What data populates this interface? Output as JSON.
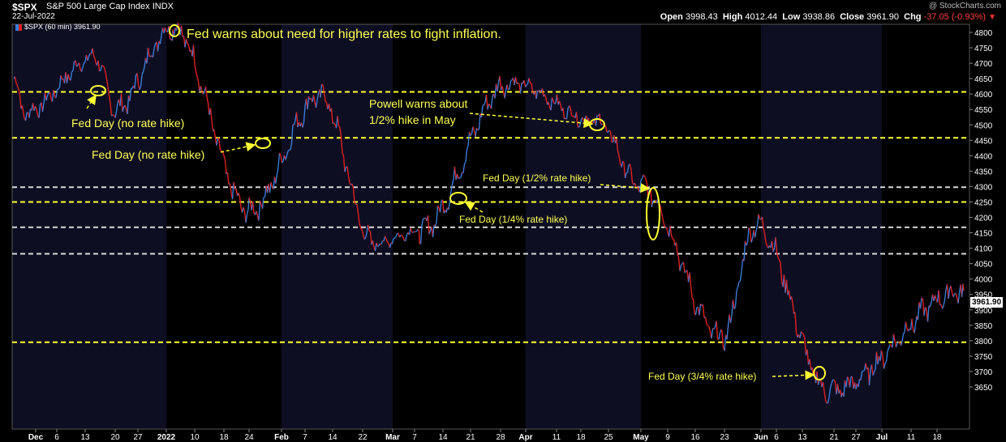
{
  "header": {
    "symbol": "$SPX",
    "name": "S&P 500 Large Cap Index",
    "exchange": "INDX",
    "date": "22-Jul-2022",
    "brand": "@ StockCharts.com",
    "open_label": "Open",
    "open": "3998.43",
    "high_label": "High",
    "high": "4012.44",
    "low_label": "Low",
    "low": "3938.86",
    "close_label": "Close",
    "close": "3961.90",
    "chg_label": "Chg",
    "chg": "-37.05 (-0.93%)"
  },
  "legend": "$SPX (60 min) 3961.90",
  "last_price": "3961.90",
  "chart_data": {
    "type": "line",
    "colors": {
      "up": "#3a7bd5",
      "down": "#e02020",
      "level_line": "#ffff33",
      "grey_line": "#d8d8d8",
      "band": "#0e0e22"
    },
    "ylim": [
      3620,
      4830
    ],
    "y_ticks": [
      3650,
      3700,
      3750,
      3800,
      3850,
      3900,
      3950,
      4000,
      4050,
      4100,
      4150,
      4200,
      4250,
      4300,
      4350,
      4400,
      4450,
      4500,
      4550,
      4600,
      4650,
      4700,
      4750,
      4800
    ],
    "x_tick_labels": [
      "Dec",
      "6",
      "13",
      "20",
      "27",
      "2022",
      "10",
      "18",
      "24",
      "Feb",
      "7",
      "14",
      "22",
      "Mar",
      "7",
      "14",
      "21",
      "28",
      "Apr",
      "11",
      "18",
      "25",
      "May",
      "9",
      "16",
      "23",
      "Jun",
      "6",
      "13",
      "21",
      "27",
      "Jul",
      "11",
      "18"
    ],
    "x_tick_bold": [
      "Dec",
      "2022",
      "Feb",
      "Mar",
      "Apr",
      "May",
      "Jun",
      "Jul"
    ],
    "series": [
      {
        "x": [
          "Dec",
          "6",
          "13",
          "20",
          "27",
          "2022",
          "10",
          "18",
          "24",
          "Feb",
          "7",
          "14",
          "22",
          "Mar",
          "7",
          "14",
          "21",
          "28",
          "Apr",
          "11",
          "18",
          "25",
          "May",
          "9",
          "16",
          "23",
          "Jun",
          "6",
          "13",
          "21",
          "27",
          "Jul",
          "11",
          "18"
        ],
        "values": [
          4595,
          4580,
          4700,
          4560,
          4770,
          4790,
          4660,
          4570,
          4300,
          4500,
          4560,
          4400,
          4320,
          4250,
          4200,
          4240,
          4440,
          4580,
          4560,
          4420,
          4430,
          4220,
          4140,
          4040,
          3880,
          3950,
          4150,
          4130,
          3780,
          3680,
          3780,
          3800,
          3840,
          3980
        ]
      }
    ],
    "key_points": [
      {
        "x": "Nov 29",
        "y": 4655
      },
      {
        "x": "Dec 1",
        "y": 4540
      },
      {
        "x": "Dec 16",
        "y": 4720
      },
      {
        "x": "Dec 20",
        "y": 4550
      },
      {
        "x": "Jan 4",
        "y": 4818
      },
      {
        "x": "Jan 24",
        "y": 4222
      },
      {
        "x": "Feb 2",
        "y": 4595
      },
      {
        "x": "Feb 24",
        "y": 4114
      },
      {
        "x": "Mar 8",
        "y": 4157
      },
      {
        "x": "Mar 29",
        "y": 4637
      },
      {
        "x": "Apr 21",
        "y": 4512
      },
      {
        "x": "May 4",
        "y": 4300
      },
      {
        "x": "May 20",
        "y": 3810
      },
      {
        "x": "Jun 2",
        "y": 4177
      },
      {
        "x": "Jun 17",
        "y": 3637
      },
      {
        "x": "Jul 22",
        "y": 3962
      }
    ],
    "level_lines": [
      {
        "y": 4607,
        "color": "yellow"
      },
      {
        "y": 4458,
        "color": "yellow"
      },
      {
        "y": 4298,
        "color": "grey"
      },
      {
        "y": 4250,
        "color": "yellow"
      },
      {
        "y": 4168,
        "color": "grey"
      },
      {
        "y": 4082,
        "color": "grey"
      },
      {
        "y": 3795,
        "color": "yellow"
      }
    ],
    "annotations": [
      {
        "text": "Fed warns about need for higher rates to fight inflation."
      },
      {
        "text": "Fed Day (no rate hike)"
      },
      {
        "text": "Fed Day (no rate hike)"
      },
      {
        "text": "Powell warns about"
      },
      {
        "text": "1/2% hike in May"
      },
      {
        "text": "Fed Day (1/2% rate hike)"
      },
      {
        "text": "Fed Day (1/4% rate hike)"
      },
      {
        "text": "Fed Day (3/4% rate hike)"
      }
    ]
  }
}
